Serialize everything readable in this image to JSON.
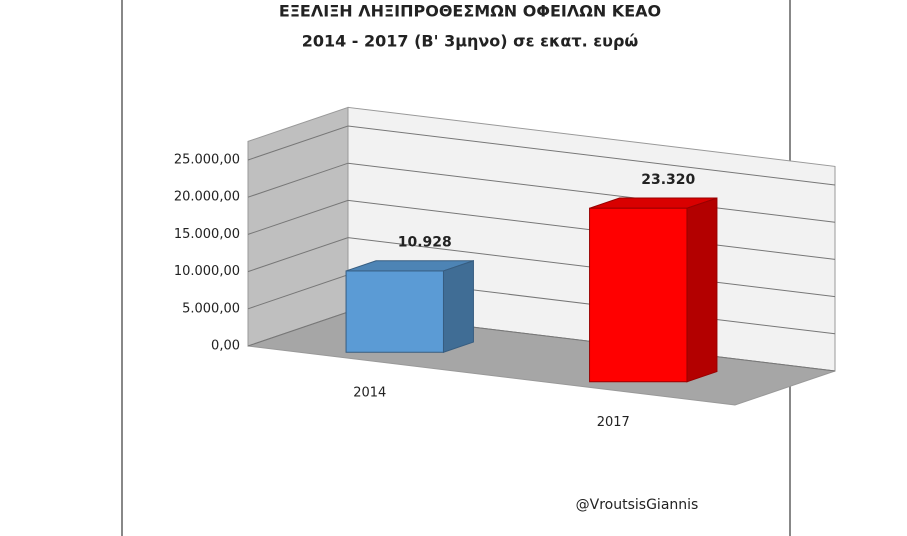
{
  "chart_data": {
    "type": "bar3d",
    "title": [
      "ΕΞΕΛΙΞΗ ΛΗΞΙΠΡΟΘΕΣΜΩΝ ΟΦΕΙΛΩΝ ΚΕΑΟ",
      "2014 - 2017 (Β' 3μηνο) σε εκατ. ευρώ"
    ],
    "categories": [
      "2014",
      "2017"
    ],
    "values": [
      10928,
      23320
    ],
    "value_labels": [
      "10.928",
      "23.320"
    ],
    "colors": [
      "#5b9bd5",
      "#ff0000"
    ],
    "ylim": [
      0,
      27500
    ],
    "yticks": [
      {
        "value": 0,
        "label": "0,00"
      },
      {
        "value": 5000,
        "label": "5.000,00"
      },
      {
        "value": 10000,
        "label": "10.000,00"
      },
      {
        "value": 15000,
        "label": "15.000,00"
      },
      {
        "value": 20000,
        "label": "20.000,00"
      },
      {
        "value": 25000,
        "label": "25.000,00"
      }
    ],
    "grid": true,
    "annotation": "@VroutsisGiannis"
  }
}
